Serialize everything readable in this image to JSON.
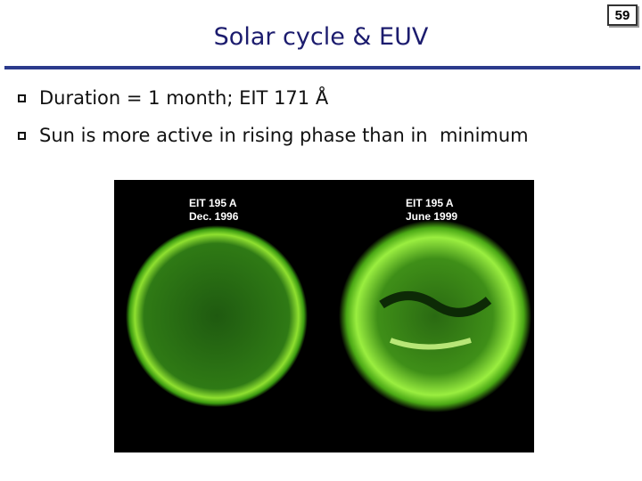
{
  "header": {
    "title": "Solar cycle & EUV",
    "page_number": "59"
  },
  "bullets": [
    "Duration = 1 month; EIT 171 Å",
    "Sun is more active in rising phase than in  minimum"
  ],
  "image": {
    "panels": [
      {
        "instrument": "EIT 195 A",
        "date": "Dec. 1996"
      },
      {
        "instrument": "EIT 195 A",
        "date": "June 1999"
      }
    ]
  }
}
